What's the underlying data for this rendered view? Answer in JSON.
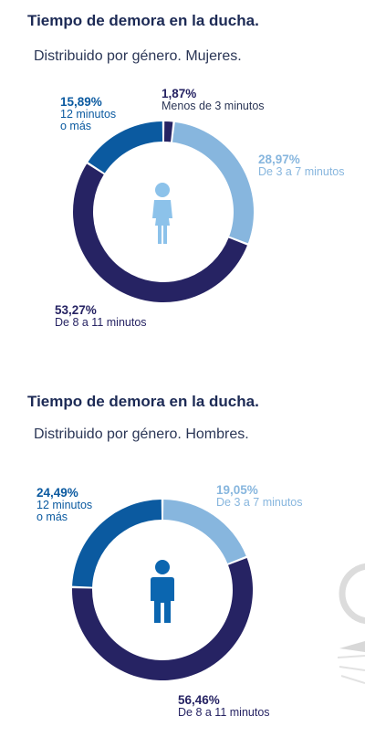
{
  "colors": {
    "dark_navy": "#262363",
    "mid_blue": "#0b5aa0",
    "light_blue": "#87b6de",
    "title": "#1c2a55",
    "figure_women": "#8cc2ea",
    "figure_men": "#0b66b0"
  },
  "sections": [
    {
      "title": "Tiempo de demora en la ducha.",
      "subtitle": "Distribuido por género. Mujeres.",
      "figure_icon": "woman-icon"
    },
    {
      "title": "Tiempo de demora en la ducha.",
      "subtitle": "Distribuido por género. Hombres.",
      "figure_icon": "man-icon"
    }
  ],
  "chart_data": [
    {
      "type": "pie",
      "slices": [
        {
          "value": 1.87,
          "value_label": "1,87%",
          "label": "Menos de 3 minutos",
          "color": "#262363"
        },
        {
          "value": 28.97,
          "value_label": "28,97%",
          "label": "De 3 a 7 minutos",
          "color": "#87b6de"
        },
        {
          "value": 53.27,
          "value_label": "53,27%",
          "label": "De 8 a 11 minutos",
          "color": "#262363"
        },
        {
          "value": 15.89,
          "value_label": "15,89%",
          "label": "12 minutos\no más",
          "color": "#0b5aa0"
        }
      ]
    },
    {
      "type": "pie",
      "slices": [
        {
          "value": 19.05,
          "value_label": "19,05%",
          "label": "De 3 a 7 minutos",
          "color": "#87b6de"
        },
        {
          "value": 56.46,
          "value_label": "56,46%",
          "label": "De 8 a 11 minutos",
          "color": "#262363"
        },
        {
          "value": 24.49,
          "value_label": "24,49%",
          "label": "12 minutos\no más",
          "color": "#0b5aa0"
        }
      ]
    }
  ]
}
